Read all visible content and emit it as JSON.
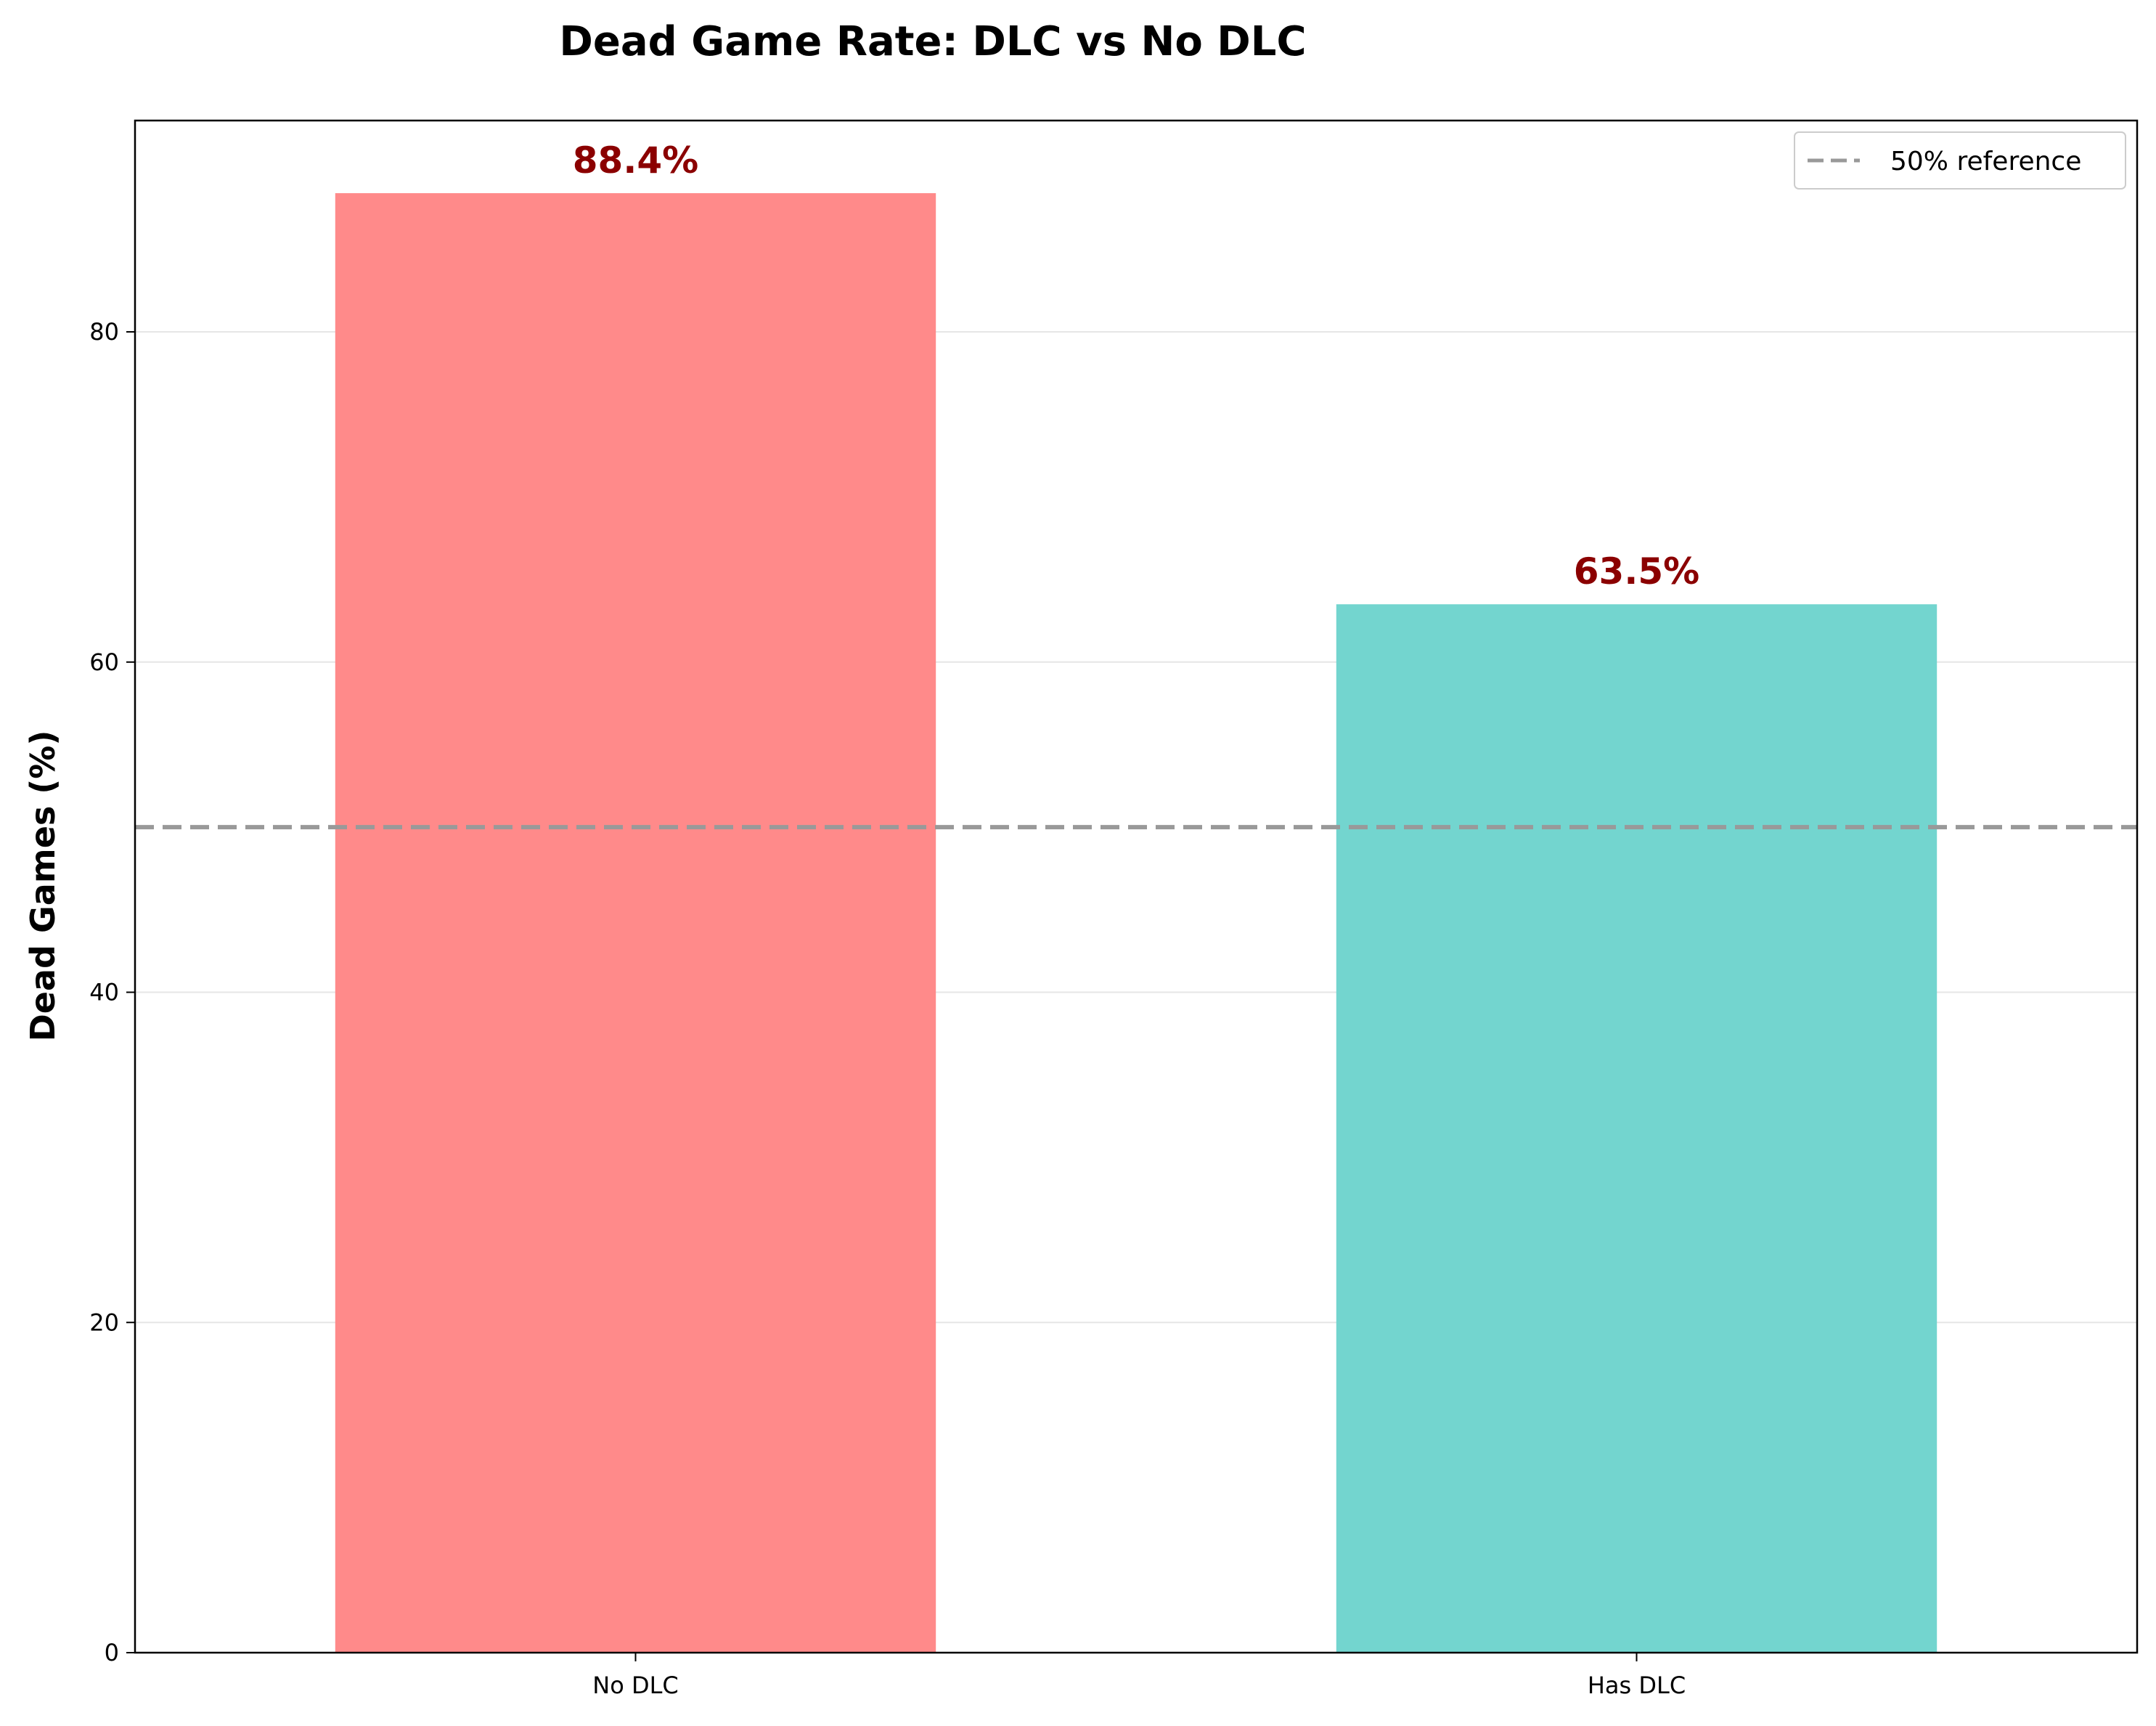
{
  "chart_data": {
    "type": "bar",
    "title": "Dead Game Rate: DLC vs No DLC",
    "xlabel": "",
    "ylabel": "Dead Games (%)",
    "categories": [
      "No DLC",
      "Has DLC"
    ],
    "values": [
      88.4,
      63.5
    ],
    "value_labels": [
      "88.4%",
      "63.5%"
    ],
    "colors": [
      "#ff8a8a",
      "#73d5cf"
    ],
    "label_color": "#8b0000",
    "ylim": [
      0,
      92.8
    ],
    "yticks": [
      0,
      20,
      40,
      60,
      80
    ],
    "ytick_labels": [
      "0",
      "20",
      "40",
      "60",
      "80"
    ],
    "grid": "y",
    "reference_line": {
      "value": 50,
      "label": "50% reference",
      "style": "dashed",
      "color": "#999999"
    },
    "legend": {
      "placement": "top-right",
      "entries": [
        "50% reference"
      ]
    }
  }
}
